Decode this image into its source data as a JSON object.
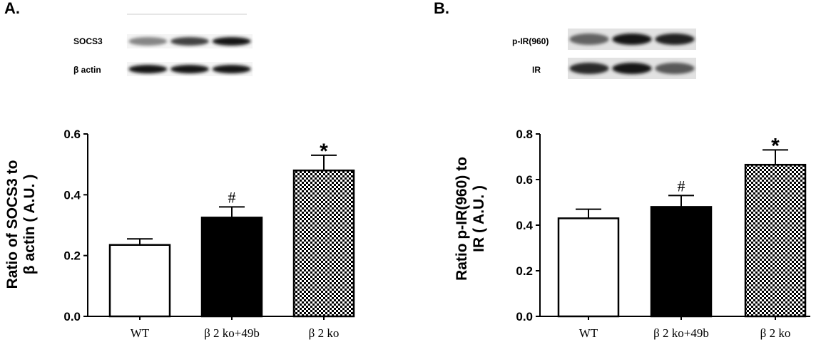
{
  "panels": [
    {
      "label": "A.",
      "blot": {
        "rows": [
          {
            "label": "SOCS3",
            "intensities": [
              0.45,
              0.75,
              0.95
            ]
          },
          {
            "label": "β actin",
            "intensities": [
              0.95,
              0.95,
              0.95
            ]
          }
        ]
      },
      "chart_data": {
        "type": "bar",
        "categories": [
          "WT",
          "β 2 ko+49b",
          "β 2 ko"
        ],
        "values": [
          0.235,
          0.325,
          0.48
        ],
        "errors": [
          0.02,
          0.035,
          0.05
        ],
        "fills": [
          "white",
          "black",
          "checker"
        ],
        "significance": [
          "",
          "#",
          "*"
        ],
        "ylabel_lines": [
          "Ratio of SOCS3 to",
          "β actin  ( A.U. )"
        ],
        "ylim": [
          0,
          0.6
        ],
        "yticks": [
          "0.0",
          "0.2",
          "0.4",
          "0.6"
        ],
        "ytick_values": [
          0,
          0.2,
          0.4,
          0.6
        ]
      }
    },
    {
      "label": "B.",
      "blot": {
        "rows": [
          {
            "label": "p-IR(960)",
            "intensities": [
              0.6,
              0.95,
              0.9
            ]
          },
          {
            "label": "IR",
            "intensities": [
              0.85,
              0.95,
              0.65
            ]
          }
        ]
      },
      "chart_data": {
        "type": "bar",
        "categories": [
          "WT",
          "β 2 ko+49b",
          "β 2 ko"
        ],
        "values": [
          0.43,
          0.48,
          0.665
        ],
        "errors": [
          0.04,
          0.05,
          0.065
        ],
        "fills": [
          "white",
          "black",
          "checker"
        ],
        "significance": [
          "",
          "#",
          "*"
        ],
        "ylabel_lines": [
          "Ratio p-IR(960) to",
          "IR ( A.U. )"
        ],
        "ylim": [
          0,
          0.8
        ],
        "yticks": [
          "0.0",
          "0.2",
          "0.4",
          "0.6",
          "0.8"
        ],
        "ytick_values": [
          0,
          0.2,
          0.4,
          0.6,
          0.8
        ]
      }
    }
  ]
}
